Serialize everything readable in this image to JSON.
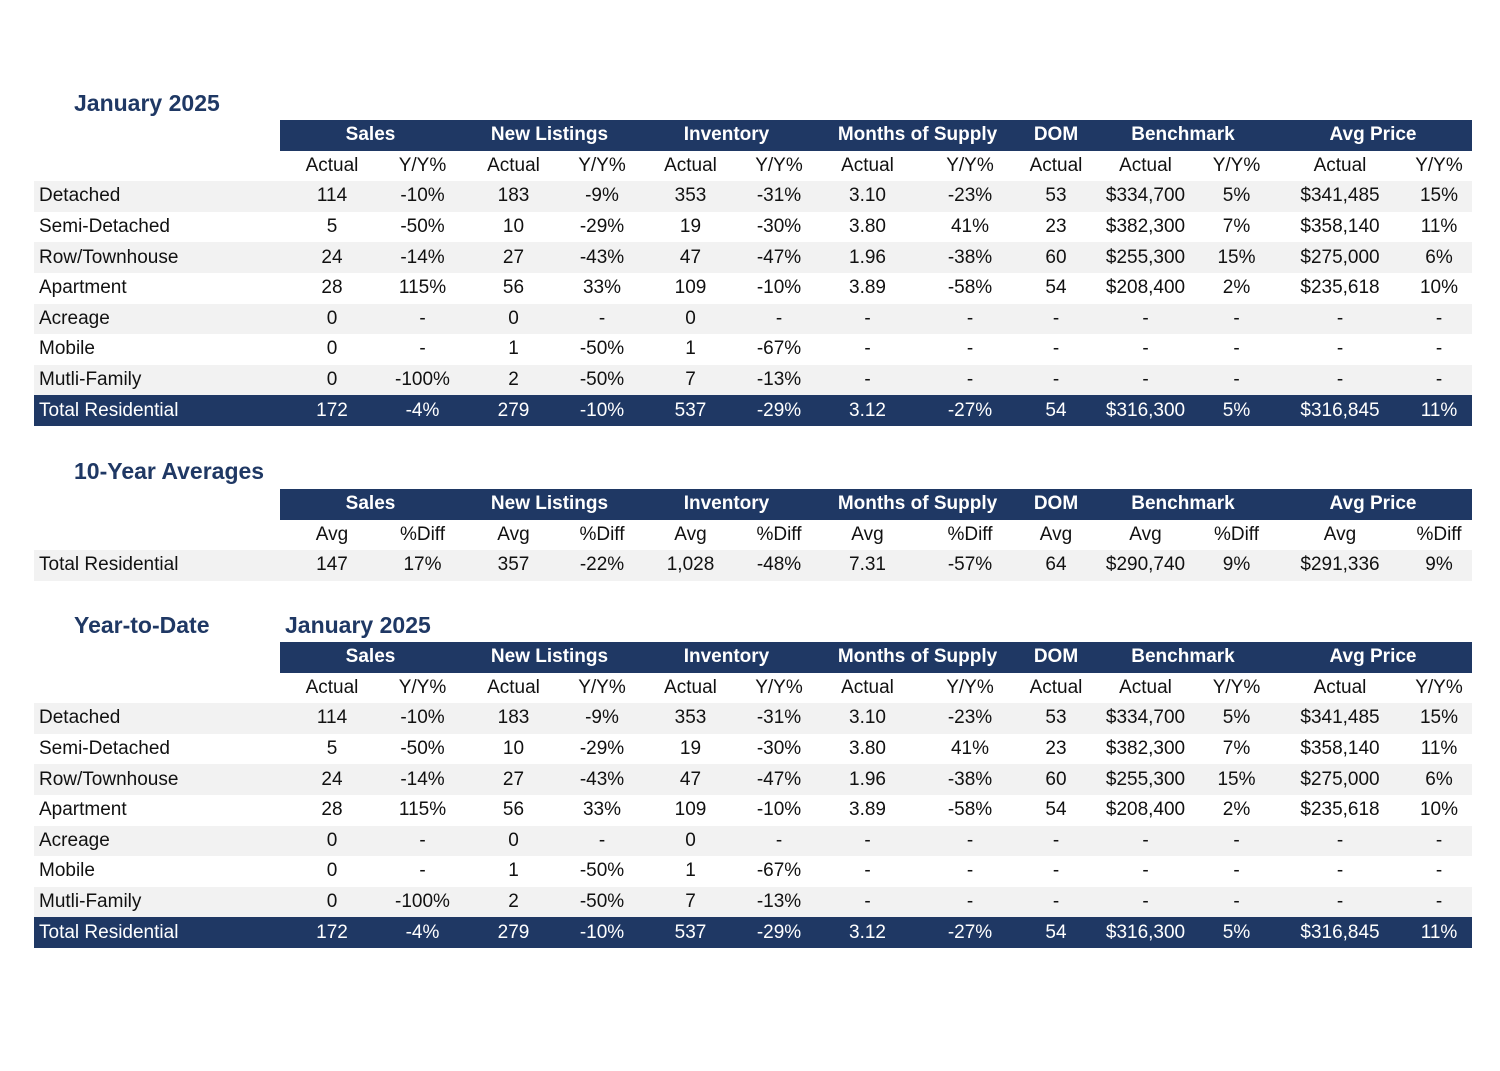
{
  "groups": [
    "Sales",
    "New Listings",
    "Inventory",
    "Months of Supply",
    "DOM",
    "Benchmark",
    "Avg Price"
  ],
  "sub_actual": [
    "Actual",
    "Y/Y%",
    "Actual",
    "Y/Y%",
    "Actual",
    "Y/Y%",
    "Actual",
    "Y/Y%",
    "Actual",
    "Actual",
    "Y/Y%",
    "Actual",
    "Y/Y%"
  ],
  "sub_avg": [
    "Avg",
    "%Diff",
    "Avg",
    "%Diff",
    "Avg",
    "%Diff",
    "Avg",
    "%Diff",
    "Avg",
    "Avg",
    "%Diff",
    "Avg",
    "%Diff"
  ],
  "monthly": {
    "title": "January 2025",
    "rows": [
      {
        "label": "Detached",
        "values": [
          "114",
          "-10%",
          "183",
          "-9%",
          "353",
          "-31%",
          "3.10",
          "-23%",
          "53",
          "$334,700",
          "5%",
          "$341,485",
          "15%"
        ]
      },
      {
        "label": "Semi-Detached",
        "values": [
          "5",
          "-50%",
          "10",
          "-29%",
          "19",
          "-30%",
          "3.80",
          "41%",
          "23",
          "$382,300",
          "7%",
          "$358,140",
          "11%"
        ]
      },
      {
        "label": "Row/Townhouse",
        "values": [
          "24",
          "-14%",
          "27",
          "-43%",
          "47",
          "-47%",
          "1.96",
          "-38%",
          "60",
          "$255,300",
          "15%",
          "$275,000",
          "6%"
        ]
      },
      {
        "label": "Apartment",
        "values": [
          "28",
          "115%",
          "56",
          "33%",
          "109",
          "-10%",
          "3.89",
          "-58%",
          "54",
          "$208,400",
          "2%",
          "$235,618",
          "10%"
        ]
      },
      {
        "label": "Acreage",
        "values": [
          "0",
          "-",
          "0",
          "-",
          "0",
          "-",
          "-",
          "-",
          "-",
          "-",
          "-",
          "-",
          "-"
        ]
      },
      {
        "label": "Mobile",
        "values": [
          "0",
          "-",
          "1",
          "-50%",
          "1",
          "-67%",
          "-",
          "-",
          "-",
          "-",
          "-",
          "-",
          "-"
        ]
      },
      {
        "label": "Mutli-Family",
        "values": [
          "0",
          "-100%",
          "2",
          "-50%",
          "7",
          "-13%",
          "-",
          "-",
          "-",
          "-",
          "-",
          "-",
          "-"
        ]
      }
    ],
    "total": {
      "label": "Total Residential",
      "values": [
        "172",
        "-4%",
        "279",
        "-10%",
        "537",
        "-29%",
        "3.12",
        "-27%",
        "54",
        "$316,300",
        "5%",
        "$316,845",
        "11%"
      ]
    }
  },
  "averages": {
    "title": "10-Year Averages",
    "rows": [
      {
        "label": "Total Residential",
        "values": [
          "147",
          "17%",
          "357",
          "-22%",
          "1,028",
          "-48%",
          "7.31",
          "-57%",
          "64",
          "$290,740",
          "9%",
          "$291,336",
          "9%"
        ]
      }
    ]
  },
  "ytd": {
    "title": "Year-to-Date",
    "period": "January 2025",
    "rows": [
      {
        "label": "Detached",
        "values": [
          "114",
          "-10%",
          "183",
          "-9%",
          "353",
          "-31%",
          "3.10",
          "-23%",
          "53",
          "$334,700",
          "5%",
          "$341,485",
          "15%"
        ]
      },
      {
        "label": "Semi-Detached",
        "values": [
          "5",
          "-50%",
          "10",
          "-29%",
          "19",
          "-30%",
          "3.80",
          "41%",
          "23",
          "$382,300",
          "7%",
          "$358,140",
          "11%"
        ]
      },
      {
        "label": "Row/Townhouse",
        "values": [
          "24",
          "-14%",
          "27",
          "-43%",
          "47",
          "-47%",
          "1.96",
          "-38%",
          "60",
          "$255,300",
          "15%",
          "$275,000",
          "6%"
        ]
      },
      {
        "label": "Apartment",
        "values": [
          "28",
          "115%",
          "56",
          "33%",
          "109",
          "-10%",
          "3.89",
          "-58%",
          "54",
          "$208,400",
          "2%",
          "$235,618",
          "10%"
        ]
      },
      {
        "label": "Acreage",
        "values": [
          "0",
          "-",
          "0",
          "-",
          "0",
          "-",
          "-",
          "-",
          "-",
          "-",
          "-",
          "-",
          "-"
        ]
      },
      {
        "label": "Mobile",
        "values": [
          "0",
          "-",
          "1",
          "-50%",
          "1",
          "-67%",
          "-",
          "-",
          "-",
          "-",
          "-",
          "-",
          "-"
        ]
      },
      {
        "label": "Mutli-Family",
        "values": [
          "0",
          "-100%",
          "2",
          "-50%",
          "7",
          "-13%",
          "-",
          "-",
          "-",
          "-",
          "-",
          "-",
          "-"
        ]
      }
    ],
    "total": {
      "label": "Total Residential",
      "values": [
        "172",
        "-4%",
        "279",
        "-10%",
        "537",
        "-29%",
        "3.12",
        "-27%",
        "54",
        "$316,300",
        "5%",
        "$316,845",
        "11%"
      ]
    }
  },
  "colors": {
    "header_bg": "#1f3864",
    "title": "#1f3864",
    "stripe": "#f2f2f2"
  }
}
